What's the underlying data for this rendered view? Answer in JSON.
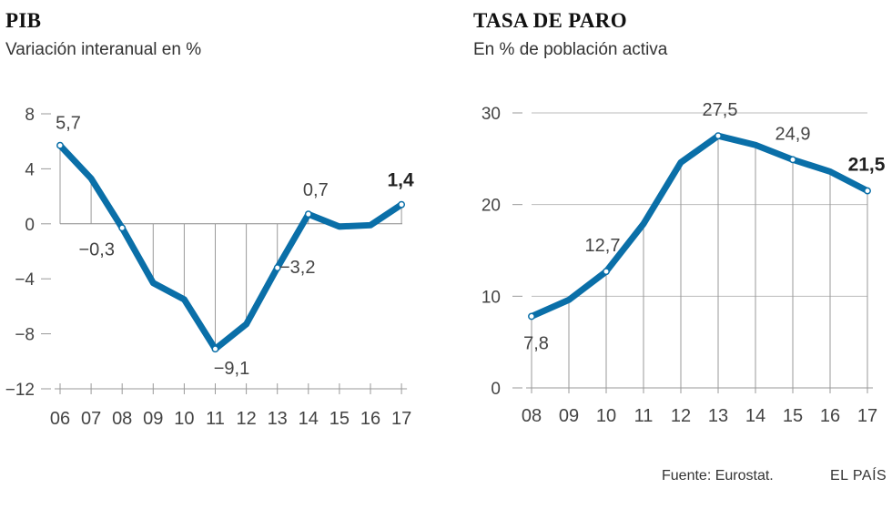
{
  "chart_data": [
    {
      "type": "line",
      "title": "PIB",
      "subtitle": "Variación interanual en %",
      "categories": [
        "06",
        "07",
        "08",
        "09",
        "10",
        "11",
        "12",
        "13",
        "14",
        "15",
        "16",
        "17"
      ],
      "values": [
        5.7,
        3.3,
        -0.3,
        -4.3,
        -5.5,
        -9.1,
        -7.3,
        -3.2,
        0.7,
        -0.2,
        -0.1,
        1.4
      ],
      "ylim": [
        -12,
        8
      ],
      "yticks": [
        "8",
        "4",
        "0",
        "−4",
        "−8",
        "−12"
      ],
      "data_labels": [
        {
          "index": 0,
          "text": "5,7"
        },
        {
          "index": 2,
          "text": "−0,3"
        },
        {
          "index": 5,
          "text": "−9,1"
        },
        {
          "index": 7,
          "text": "−3,2"
        },
        {
          "index": 8,
          "text": "0,7"
        },
        {
          "index": 11,
          "text": "1,4",
          "bold": true
        }
      ],
      "color": "#0a6fa8"
    },
    {
      "type": "line",
      "title": "TASA DE PARO",
      "subtitle": "En % de población activa",
      "categories": [
        "08",
        "09",
        "10",
        "11",
        "12",
        "13",
        "14",
        "15",
        "16",
        "17"
      ],
      "values": [
        7.8,
        9.6,
        12.7,
        17.9,
        24.6,
        27.5,
        26.5,
        24.9,
        23.6,
        21.5
      ],
      "ylim": [
        0,
        30
      ],
      "yticks": [
        "30",
        "20",
        "10",
        "0"
      ],
      "data_labels": [
        {
          "index": 0,
          "text": "7,8"
        },
        {
          "index": 2,
          "text": "12,7"
        },
        {
          "index": 5,
          "text": "27,5"
        },
        {
          "index": 7,
          "text": "24,9"
        },
        {
          "index": 9,
          "text": "21,5",
          "bold": true
        }
      ],
      "color": "#0a6fa8"
    }
  ],
  "footer": {
    "source": "Fuente: Eurostat.",
    "brand": "EL PAÍS"
  }
}
